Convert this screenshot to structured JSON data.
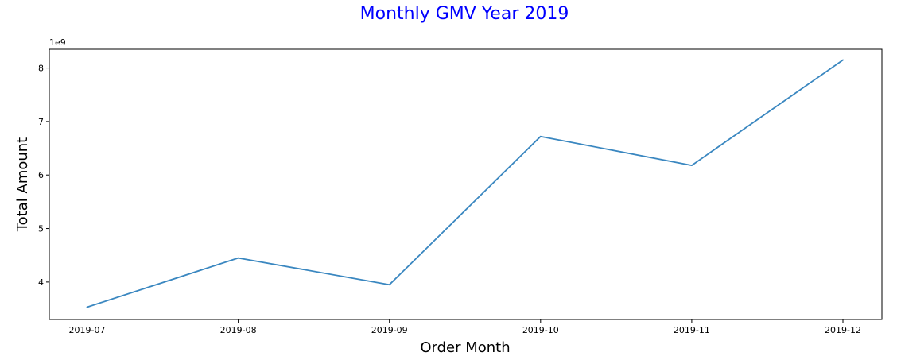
{
  "chart_data": {
    "type": "line",
    "title": "Monthly GMV Year 2019",
    "title_color": "#0000ff",
    "xlabel": "Order Month",
    "ylabel": "Total Amount",
    "y_offset_label": "1e9",
    "categories": [
      "2019-07",
      "2019-08",
      "2019-09",
      "2019-10",
      "2019-11",
      "2019-12"
    ],
    "series": [
      {
        "name": "",
        "color": "#3a87c0",
        "values": [
          3.53,
          4.45,
          3.95,
          6.72,
          6.18,
          8.15
        ]
      }
    ],
    "yticks": [
      "4",
      "5",
      "6",
      "7",
      "8"
    ],
    "ylim": [
      3.3,
      8.35
    ],
    "grid": false,
    "legend": "none"
  }
}
